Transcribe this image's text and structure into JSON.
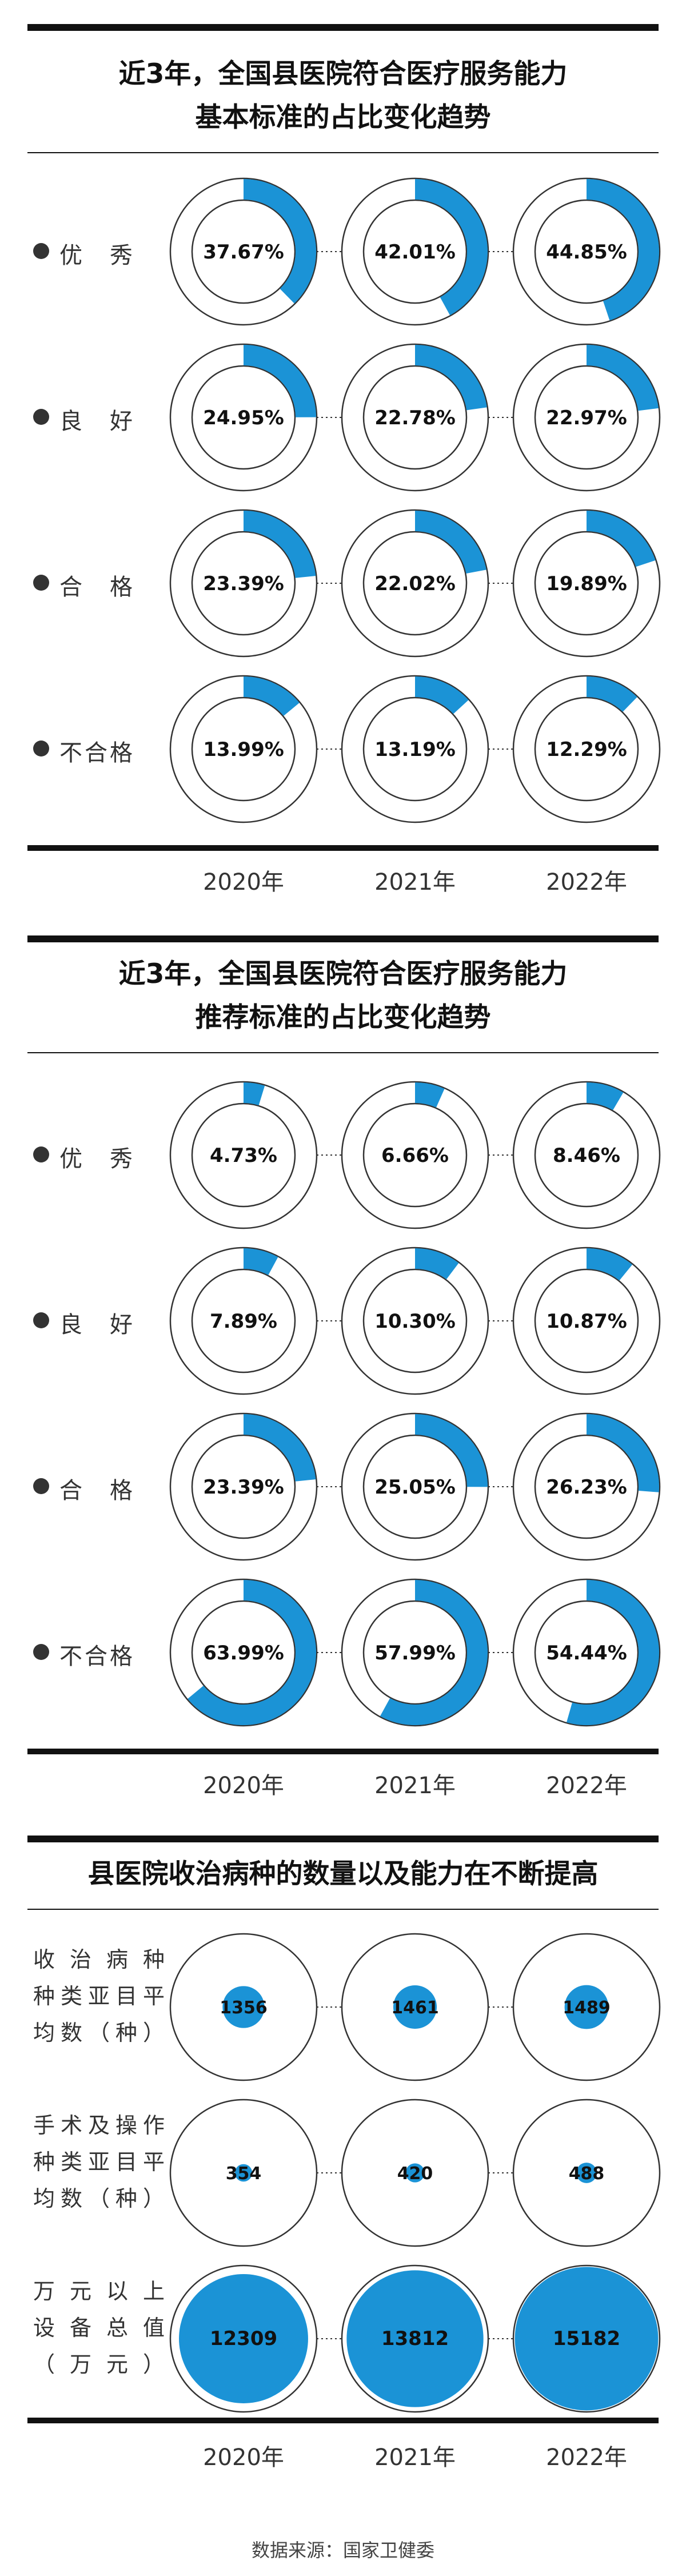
{
  "colors": {
    "accent": "#1b93d6",
    "ring": "#333333",
    "text": "#111111"
  },
  "years": [
    "2020年",
    "2021年",
    "2022年"
  ],
  "source": "数据来源：国家卫健委",
  "chart_data": [
    {
      "type": "pie",
      "title": "近3年，全国县医院符合医疗服务能力基本标准的占比变化趋势",
      "title_lines": [
        "近3年，全国县医院符合医疗服务能力",
        "基本标准的占比变化趋势"
      ],
      "categories": [
        "2020年",
        "2021年",
        "2022年"
      ],
      "rows": [
        {
          "label": "优　秀",
          "values": [
            37.67,
            42.01,
            44.85
          ],
          "labels": [
            "37.67%",
            "42.01%",
            "44.85%"
          ]
        },
        {
          "label": "良　好",
          "values": [
            24.95,
            22.78,
            22.97
          ],
          "labels": [
            "24.95%",
            "22.78%",
            "22.97%"
          ]
        },
        {
          "label": "合　格",
          "values": [
            23.39,
            22.02,
            19.89
          ],
          "labels": [
            "23.39%",
            "22.02%",
            "19.89%"
          ]
        },
        {
          "label": "不合格",
          "values": [
            13.99,
            13.19,
            12.29
          ],
          "labels": [
            "13.99%",
            "13.19%",
            "12.29%"
          ]
        }
      ]
    },
    {
      "type": "pie",
      "title": "近3年，全国县医院符合医疗服务能力推荐标准的占比变化趋势",
      "title_lines": [
        "近3年，全国县医院符合医疗服务能力",
        "推荐标准的占比变化趋势"
      ],
      "categories": [
        "2020年",
        "2021年",
        "2022年"
      ],
      "rows": [
        {
          "label": "优　秀",
          "values": [
            4.73,
            6.66,
            8.46
          ],
          "labels": [
            "4.73%",
            "6.66%",
            "8.46%"
          ]
        },
        {
          "label": "良　好",
          "values": [
            7.89,
            10.3,
            10.87
          ],
          "labels": [
            "7.89%",
            "10.30%",
            "10.87%"
          ]
        },
        {
          "label": "合　格",
          "values": [
            23.39,
            25.05,
            26.23
          ],
          "labels": [
            "23.39%",
            "25.05%",
            "26.23%"
          ]
        },
        {
          "label": "不合格",
          "values": [
            63.99,
            57.99,
            54.44
          ],
          "labels": [
            "63.99%",
            "57.99%",
            "54.44%"
          ]
        }
      ]
    },
    {
      "type": "scatter",
      "title": "县医院收治病种的数量以及能力在不断提高",
      "categories": [
        "2020年",
        "2021年",
        "2022年"
      ],
      "rows": [
        {
          "label_lines": [
            "收治病种",
            "种类亚目平",
            "均数（种）"
          ],
          "values": [
            1356,
            1461,
            1489
          ],
          "scale_max": 1489,
          "max_fraction": 0.3
        },
        {
          "label_lines": [
            "手术及操作",
            "种类亚目平",
            "均数（种）"
          ],
          "values": [
            354,
            420,
            488
          ],
          "scale_max": 488,
          "max_fraction": 0.14
        },
        {
          "label_lines": [
            "万元以上",
            "设备总值",
            "（万元）"
          ],
          "values": [
            12309,
            13812,
            15182
          ],
          "scale_max": 15182,
          "max_fraction": 0.98
        }
      ]
    }
  ]
}
